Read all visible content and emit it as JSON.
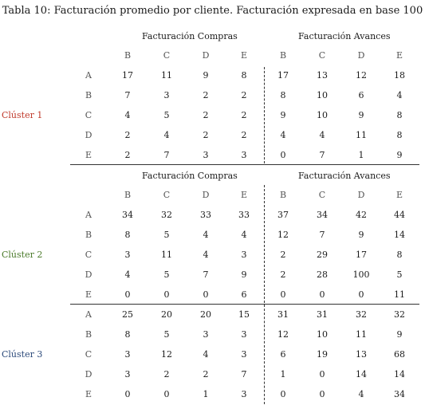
{
  "title": "Tabla 10: Facturación promedio por cliente. Facturación expresada en base 100",
  "group_compras": "Facturación Compras",
  "group_avances": "Facturación Avances",
  "col_labels": [
    "B",
    "C",
    "D",
    "E",
    "B",
    "C",
    "D",
    "E"
  ],
  "row_labels": [
    "A",
    "B",
    "C",
    "D",
    "E"
  ],
  "clusters": [
    {
      "name": "Clúster 1",
      "color": "#c0392b",
      "rows": [
        [
          "17",
          "11",
          "9",
          "8",
          "17",
          "13",
          "12",
          "18"
        ],
        [
          "7",
          "3",
          "2",
          "2",
          "8",
          "10",
          "6",
          "4"
        ],
        [
          "4",
          "5",
          "2",
          "2",
          "9",
          "10",
          "9",
          "8"
        ],
        [
          "2",
          "4",
          "2",
          "2",
          "4",
          "4",
          "11",
          "8"
        ],
        [
          "2",
          "7",
          "3",
          "3",
          "0",
          "7",
          "1",
          "9"
        ]
      ]
    },
    {
      "name": "Clúster 2",
      "color": "#4a7a2a",
      "rows": [
        [
          "34",
          "32",
          "33",
          "33",
          "37",
          "34",
          "42",
          "44"
        ],
        [
          "8",
          "5",
          "4",
          "4",
          "12",
          "7",
          "9",
          "14"
        ],
        [
          "3",
          "11",
          "4",
          "3",
          "2",
          "29",
          "17",
          "8"
        ],
        [
          "4",
          "5",
          "7",
          "9",
          "2",
          "28",
          "100",
          "5"
        ],
        [
          "0",
          "0",
          "0",
          "6",
          "0",
          "0",
          "0",
          "11"
        ]
      ]
    },
    {
      "name": "Clúster 3",
      "color": "#2c4a7a",
      "rows": [
        [
          "25",
          "20",
          "20",
          "15",
          "31",
          "31",
          "32",
          "32"
        ],
        [
          "8",
          "5",
          "3",
          "3",
          "12",
          "10",
          "11",
          "9"
        ],
        [
          "3",
          "12",
          "4",
          "3",
          "6",
          "19",
          "13",
          "68"
        ],
        [
          "3",
          "2",
          "2",
          "7",
          "1",
          "0",
          "14",
          "14"
        ],
        [
          "0",
          "0",
          "1",
          "3",
          "0",
          "0",
          "4",
          "34"
        ]
      ]
    }
  ]
}
